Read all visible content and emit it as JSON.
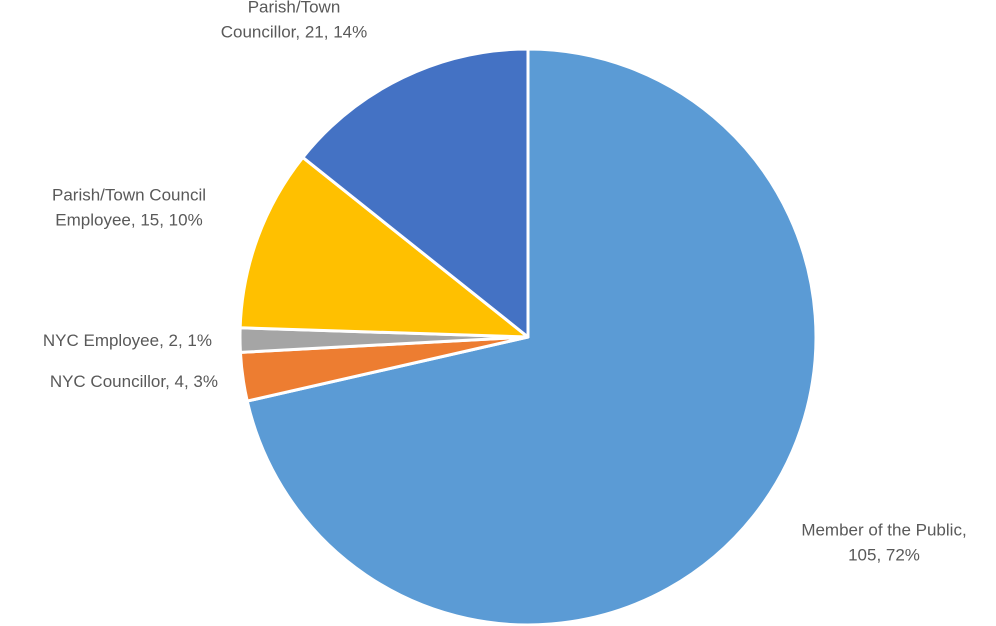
{
  "chart_data": {
    "type": "pie",
    "title": "",
    "legend": "none",
    "slices": [
      {
        "name": "Member of the Public",
        "value": 105,
        "percent": "72%",
        "color": "#5B9BD5",
        "label_lines": [
          "Member of the Public,",
          "105, 72%"
        ]
      },
      {
        "name": "NYC Councillor",
        "value": 4,
        "percent": "3%",
        "color": "#ED7D31",
        "label_lines": [
          "NYC Councillor, 4, 3%"
        ]
      },
      {
        "name": "NYC Employee",
        "value": 2,
        "percent": "1%",
        "color": "#A5A5A5",
        "label_lines": [
          "NYC Employee, 2, 1%"
        ]
      },
      {
        "name": "Parish/Town Council Employee",
        "value": 15,
        "percent": "10%",
        "color": "#FFC000",
        "label_lines": [
          "Parish/Town Council",
          "Employee, 15, 10%"
        ]
      },
      {
        "name": "Parish/Town Councillor",
        "value": 21,
        "percent": "14%",
        "color": "#4472C4",
        "label_lines": [
          "Parish/Town",
          "Councillor, 21, 14%"
        ]
      }
    ]
  }
}
